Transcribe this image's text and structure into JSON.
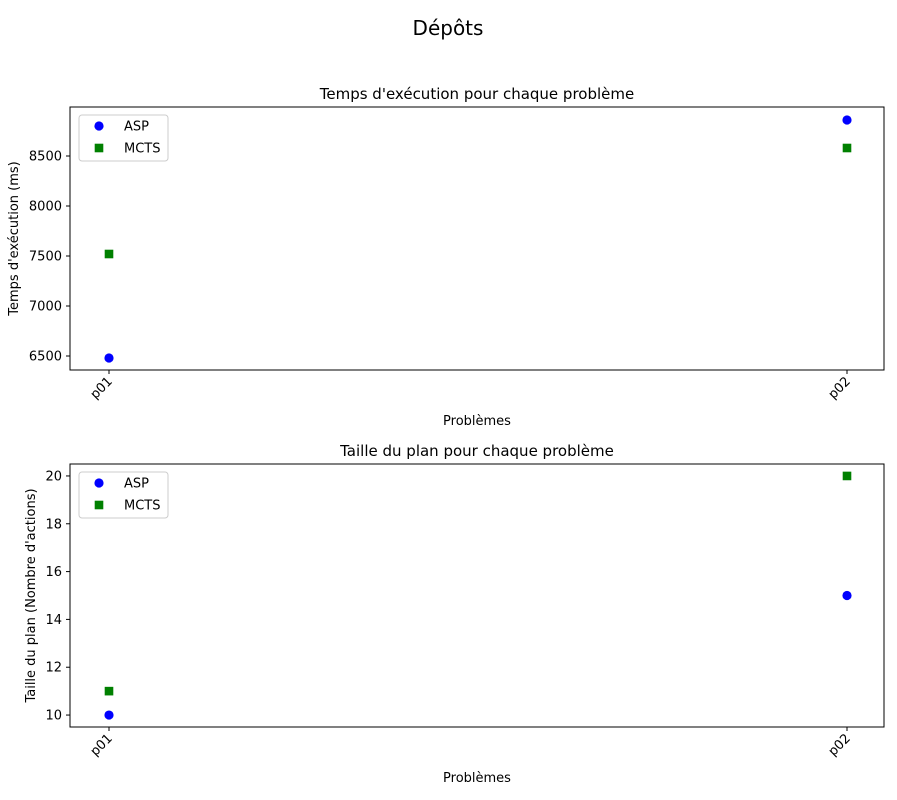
{
  "suptitle": "Dépôts",
  "chart_data": [
    {
      "type": "scatter",
      "title": "Temps d'exécution pour chaque problème",
      "xlabel": "Problèmes",
      "ylabel": "Temps d'exécution (ms)",
      "categories": [
        "p01",
        "p02"
      ],
      "ylim": [
        6360,
        8990
      ],
      "yticks": [
        6500,
        7000,
        7500,
        8000,
        8500
      ],
      "legend": "top-left",
      "grid": false,
      "series": [
        {
          "name": "ASP",
          "marker": "circle",
          "color": "#0000ff",
          "values": [
            6480,
            8860
          ]
        },
        {
          "name": "MCTS",
          "marker": "square",
          "color": "#008000",
          "values": [
            7520,
            8580
          ]
        }
      ]
    },
    {
      "type": "scatter",
      "title": "Taille du plan pour chaque problème",
      "xlabel": "Problèmes",
      "ylabel": "Taille du plan (Nombre d'actions)",
      "categories": [
        "p01",
        "p02"
      ],
      "ylim": [
        9.5,
        20.5
      ],
      "yticks": [
        10,
        12,
        14,
        16,
        18,
        20
      ],
      "legend": "top-left",
      "grid": false,
      "series": [
        {
          "name": "ASP",
          "marker": "circle",
          "color": "#0000ff",
          "values": [
            10,
            15
          ]
        },
        {
          "name": "MCTS",
          "marker": "square",
          "color": "#008000",
          "values": [
            11,
            20
          ]
        }
      ]
    }
  ]
}
